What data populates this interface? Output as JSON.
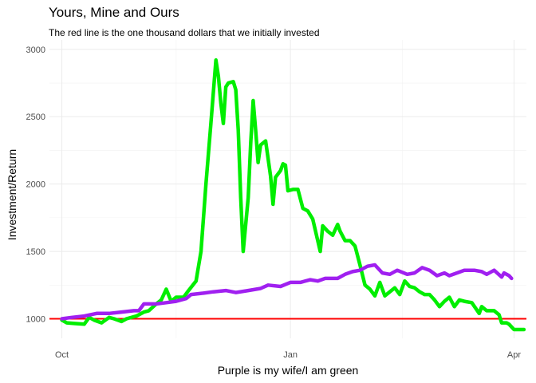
{
  "chart_data": {
    "type": "line",
    "title": "Yours, Mine and Ours",
    "subtitle": "The red line is the one thousand dollars that we initially invested",
    "xlabel": "Purple is my wife/I am green",
    "ylabel": "Investment/Return",
    "x_axis": {
      "type": "date",
      "range": [
        "2017-09-26",
        "2018-04-06"
      ],
      "ticks": [
        {
          "date": "2017-10-01",
          "label": "Oct"
        },
        {
          "date": "2018-01-01",
          "label": "Jan"
        },
        {
          "date": "2018-04-01",
          "label": "Apr"
        }
      ]
    },
    "y_axis": {
      "range": [
        855,
        3070
      ],
      "ticks": [
        1000,
        1500,
        2000,
        2500,
        3000
      ]
    },
    "grid": true,
    "reference_line": {
      "y": 1000,
      "color": "#ff0000"
    },
    "series": [
      {
        "color": "#00ee00",
        "points": [
          [
            "2017-10-01",
            990
          ],
          [
            "2017-10-03",
            970
          ],
          [
            "2017-10-06",
            965
          ],
          [
            "2017-10-10",
            960
          ],
          [
            "2017-10-12",
            1010
          ],
          [
            "2017-10-14",
            990
          ],
          [
            "2017-10-17",
            970
          ],
          [
            "2017-10-20",
            1010
          ],
          [
            "2017-10-22",
            1000
          ],
          [
            "2017-10-25",
            980
          ],
          [
            "2017-10-27",
            1000
          ],
          [
            "2017-10-31",
            1020
          ],
          [
            "2017-11-03",
            1050
          ],
          [
            "2017-11-05",
            1060
          ],
          [
            "2017-11-08",
            1110
          ],
          [
            "2017-11-10",
            1140
          ],
          [
            "2017-11-12",
            1220
          ],
          [
            "2017-11-14",
            1130
          ],
          [
            "2017-11-16",
            1160
          ],
          [
            "2017-11-19",
            1160
          ],
          [
            "2017-11-21",
            1210
          ],
          [
            "2017-11-24",
            1280
          ],
          [
            "2017-11-26",
            1500
          ],
          [
            "2017-11-28",
            2000
          ],
          [
            "2017-11-30",
            2450
          ],
          [
            "2017-12-02",
            2920
          ],
          [
            "2017-12-03",
            2800
          ],
          [
            "2017-12-04",
            2600
          ],
          [
            "2017-12-05",
            2450
          ],
          [
            "2017-12-06",
            2720
          ],
          [
            "2017-12-07",
            2750
          ],
          [
            "2017-12-09",
            2760
          ],
          [
            "2017-12-10",
            2700
          ],
          [
            "2017-12-11",
            2400
          ],
          [
            "2017-12-12",
            1900
          ],
          [
            "2017-12-13",
            1500
          ],
          [
            "2017-12-15",
            1900
          ],
          [
            "2017-12-16",
            2300
          ],
          [
            "2017-12-17",
            2620
          ],
          [
            "2017-12-18",
            2400
          ],
          [
            "2017-12-19",
            2160
          ],
          [
            "2017-12-20",
            2290
          ],
          [
            "2017-12-22",
            2320
          ],
          [
            "2017-12-24",
            2060
          ],
          [
            "2017-12-25",
            1850
          ],
          [
            "2017-12-26",
            2050
          ],
          [
            "2017-12-28",
            2100
          ],
          [
            "2017-12-29",
            2150
          ],
          [
            "2017-12-30",
            2140
          ],
          [
            "2017-12-31",
            1950
          ],
          [
            "2018-01-02",
            1960
          ],
          [
            "2018-01-04",
            1960
          ],
          [
            "2018-01-06",
            1820
          ],
          [
            "2018-01-08",
            1800
          ],
          [
            "2018-01-10",
            1740
          ],
          [
            "2018-01-13",
            1500
          ],
          [
            "2018-01-14",
            1690
          ],
          [
            "2018-01-16",
            1650
          ],
          [
            "2018-01-18",
            1620
          ],
          [
            "2018-01-20",
            1700
          ],
          [
            "2018-01-21",
            1650
          ],
          [
            "2018-01-23",
            1580
          ],
          [
            "2018-01-25",
            1580
          ],
          [
            "2018-01-27",
            1540
          ],
          [
            "2018-01-29",
            1400
          ],
          [
            "2018-01-31",
            1250
          ],
          [
            "2018-02-02",
            1220
          ],
          [
            "2018-02-04",
            1170
          ],
          [
            "2018-02-06",
            1270
          ],
          [
            "2018-02-08",
            1170
          ],
          [
            "2018-02-10",
            1200
          ],
          [
            "2018-02-12",
            1230
          ],
          [
            "2018-02-14",
            1180
          ],
          [
            "2018-02-16",
            1280
          ],
          [
            "2018-02-18",
            1240
          ],
          [
            "2018-02-20",
            1230
          ],
          [
            "2018-02-22",
            1200
          ],
          [
            "2018-02-24",
            1180
          ],
          [
            "2018-02-26",
            1180
          ],
          [
            "2018-02-28",
            1140
          ],
          [
            "2018-03-02",
            1090
          ],
          [
            "2018-03-04",
            1130
          ],
          [
            "2018-03-06",
            1160
          ],
          [
            "2018-03-08",
            1090
          ],
          [
            "2018-03-10",
            1140
          ],
          [
            "2018-03-12",
            1130
          ],
          [
            "2018-03-15",
            1120
          ],
          [
            "2018-03-18",
            1040
          ],
          [
            "2018-03-19",
            1090
          ],
          [
            "2018-03-21",
            1060
          ],
          [
            "2018-03-24",
            1060
          ],
          [
            "2018-03-26",
            1030
          ],
          [
            "2018-03-27",
            970
          ],
          [
            "2018-03-29",
            970
          ],
          [
            "2018-03-30",
            960
          ],
          [
            "2018-04-01",
            920
          ],
          [
            "2018-04-03",
            920
          ],
          [
            "2018-04-05",
            920
          ]
        ]
      },
      {
        "color": "#a020f0",
        "points": [
          [
            "2017-10-01",
            1000
          ],
          [
            "2017-10-05",
            1010
          ],
          [
            "2017-10-10",
            1020
          ],
          [
            "2017-10-15",
            1040
          ],
          [
            "2017-10-20",
            1040
          ],
          [
            "2017-10-25",
            1050
          ],
          [
            "2017-10-30",
            1060
          ],
          [
            "2017-11-01",
            1060
          ],
          [
            "2017-11-03",
            1110
          ],
          [
            "2017-11-08",
            1110
          ],
          [
            "2017-11-12",
            1120
          ],
          [
            "2017-11-16",
            1130
          ],
          [
            "2017-11-20",
            1150
          ],
          [
            "2017-11-22",
            1180
          ],
          [
            "2017-11-27",
            1190
          ],
          [
            "2017-12-01",
            1200
          ],
          [
            "2017-12-06",
            1210
          ],
          [
            "2017-12-10",
            1195
          ],
          [
            "2017-12-15",
            1210
          ],
          [
            "2017-12-20",
            1225
          ],
          [
            "2017-12-23",
            1250
          ],
          [
            "2017-12-28",
            1240
          ],
          [
            "2018-01-01",
            1270
          ],
          [
            "2018-01-05",
            1270
          ],
          [
            "2018-01-09",
            1290
          ],
          [
            "2018-01-12",
            1280
          ],
          [
            "2018-01-15",
            1300
          ],
          [
            "2018-01-20",
            1300
          ],
          [
            "2018-01-23",
            1330
          ],
          [
            "2018-01-26",
            1350
          ],
          [
            "2018-01-29",
            1360
          ],
          [
            "2018-02-01",
            1390
          ],
          [
            "2018-02-04",
            1400
          ],
          [
            "2018-02-07",
            1340
          ],
          [
            "2018-02-10",
            1330
          ],
          [
            "2018-02-13",
            1360
          ],
          [
            "2018-02-17",
            1330
          ],
          [
            "2018-02-20",
            1340
          ],
          [
            "2018-02-23",
            1380
          ],
          [
            "2018-02-26",
            1360
          ],
          [
            "2018-03-01",
            1320
          ],
          [
            "2018-03-04",
            1340
          ],
          [
            "2018-03-06",
            1320
          ],
          [
            "2018-03-09",
            1340
          ],
          [
            "2018-03-12",
            1360
          ],
          [
            "2018-03-16",
            1360
          ],
          [
            "2018-03-19",
            1350
          ],
          [
            "2018-03-21",
            1330
          ],
          [
            "2018-03-24",
            1360
          ],
          [
            "2018-03-27",
            1310
          ],
          [
            "2018-03-28",
            1340
          ],
          [
            "2018-03-30",
            1320
          ],
          [
            "2018-03-31",
            1300
          ]
        ]
      }
    ]
  }
}
